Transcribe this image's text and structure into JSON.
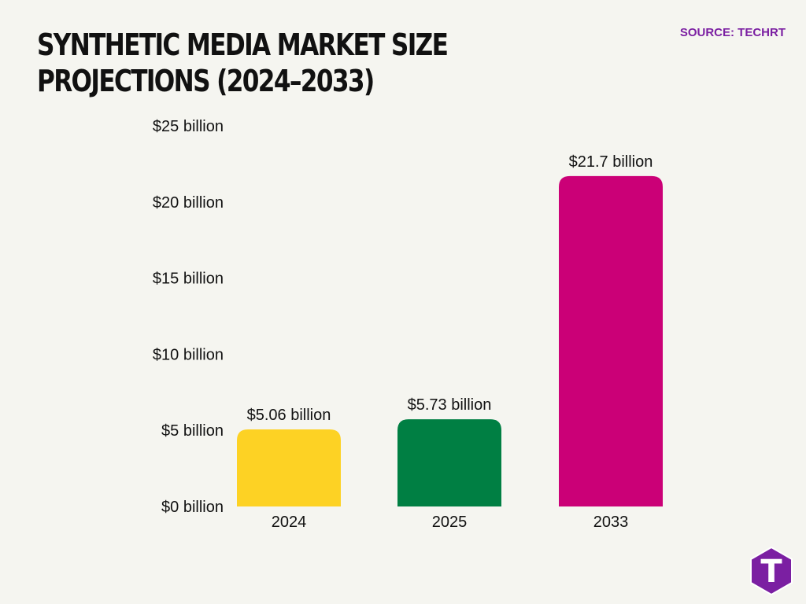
{
  "header": {
    "title": "SYNTHETIC MEDIA MARKET SIZE PROJECTIONS (2024–2033)",
    "source": "SOURCE: TECHRT"
  },
  "logo": {
    "icon": "techrt-logo-icon",
    "letter": "T",
    "color": "#7b1fa2"
  },
  "chart_data": {
    "type": "bar",
    "title": "SYNTHETIC MEDIA MARKET SIZE PROJECTIONS (2024–2033)",
    "xlabel": "",
    "ylabel": "",
    "categories": [
      "2024",
      "2025",
      "2033"
    ],
    "values": [
      5.06,
      5.73,
      21.7
    ],
    "data_labels": [
      "$5.06 billion",
      "$5.73 billion",
      "$21.7 billion"
    ],
    "colors": [
      "#fdd224",
      "#007f43",
      "#cb0077"
    ],
    "ylim": [
      0,
      25
    ],
    "yticks": [
      0,
      5,
      10,
      15,
      20,
      25
    ],
    "ytick_labels": [
      "$0 billion",
      "$5 billion",
      "$10 billion",
      "$15 billion",
      "$20 billion",
      "$25 billion"
    ],
    "grid": false,
    "legend": "none"
  }
}
